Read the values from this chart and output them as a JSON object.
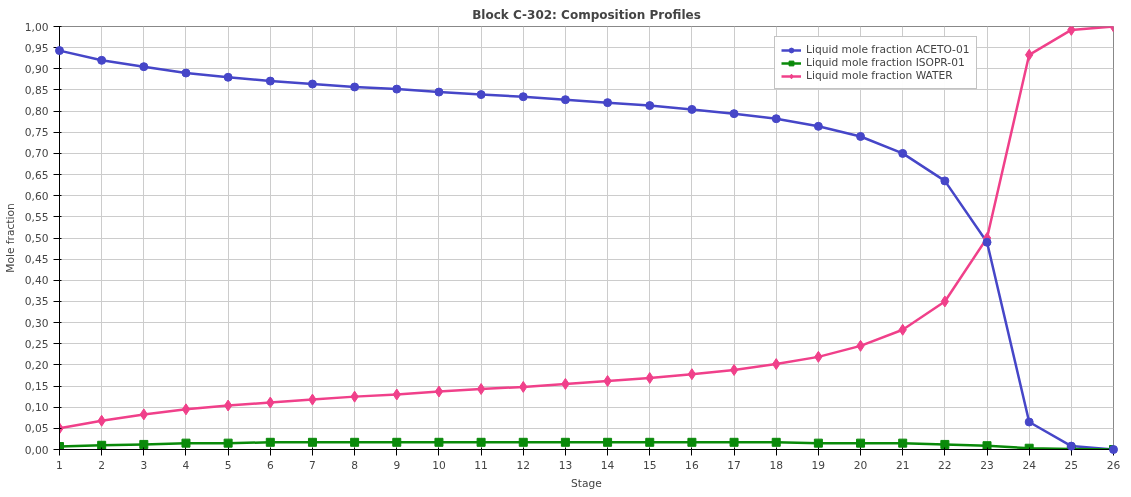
{
  "chart_data": {
    "type": "line",
    "title": "Block C-302: Composition Profiles",
    "xlabel": "Stage",
    "ylabel": "Mole fraction",
    "x": [
      1,
      2,
      3,
      4,
      5,
      6,
      7,
      8,
      9,
      10,
      11,
      12,
      13,
      14,
      15,
      16,
      17,
      18,
      19,
      20,
      21,
      22,
      23,
      24,
      25,
      26
    ],
    "series": [
      {
        "name": "Liquid mole fraction ACETO-01",
        "color": "#4646c8",
        "marker": "circle",
        "values": [
          0.943,
          0.92,
          0.905,
          0.89,
          0.88,
          0.871,
          0.864,
          0.857,
          0.852,
          0.845,
          0.839,
          0.834,
          0.827,
          0.82,
          0.813,
          0.804,
          0.794,
          0.782,
          0.764,
          0.74,
          0.7,
          0.635,
          0.49,
          0.065,
          0.008,
          0.0
        ]
      },
      {
        "name": "Liquid mole fraction ISOPR-01",
        "color": "#0a8a0a",
        "marker": "square",
        "values": [
          0.007,
          0.01,
          0.012,
          0.015,
          0.015,
          0.017,
          0.017,
          0.017,
          0.017,
          0.017,
          0.017,
          0.017,
          0.017,
          0.017,
          0.017,
          0.017,
          0.017,
          0.017,
          0.015,
          0.015,
          0.015,
          0.012,
          0.009,
          0.003,
          0.001,
          0.0
        ]
      },
      {
        "name": "Liquid mole fraction WATER",
        "color": "#f0408a",
        "marker": "diamond",
        "values": [
          0.05,
          0.068,
          0.083,
          0.095,
          0.104,
          0.111,
          0.118,
          0.125,
          0.13,
          0.137,
          0.143,
          0.148,
          0.155,
          0.162,
          0.169,
          0.178,
          0.188,
          0.202,
          0.219,
          0.245,
          0.283,
          0.35,
          0.5,
          0.933,
          0.992,
          1.0
        ]
      }
    ],
    "xlim": [
      1,
      26
    ],
    "xticks": [
      1,
      2,
      3,
      4,
      5,
      6,
      7,
      8,
      9,
      10,
      11,
      12,
      13,
      14,
      15,
      16,
      17,
      18,
      19,
      20,
      21,
      22,
      23,
      24,
      25,
      26
    ],
    "ylim": [
      0,
      1
    ],
    "yticks": [
      {
        "value": 0,
        "label": "0,00"
      },
      {
        "value": 0.05,
        "label": "0,05"
      },
      {
        "value": 0.1,
        "label": "0,10"
      },
      {
        "value": 0.15,
        "label": "0,15"
      },
      {
        "value": 0.2,
        "label": "0,20"
      },
      {
        "value": 0.25,
        "label": "0,25"
      },
      {
        "value": 0.3,
        "label": "0,30"
      },
      {
        "value": 0.35,
        "label": "0,35"
      },
      {
        "value": 0.4,
        "label": "0,40"
      },
      {
        "value": 0.45,
        "label": "0,45"
      },
      {
        "value": 0.5,
        "label": "0,50"
      },
      {
        "value": 0.55,
        "label": "0,55"
      },
      {
        "value": 0.6,
        "label": "0,60"
      },
      {
        "value": 0.65,
        "label": "0,65"
      },
      {
        "value": 0.7,
        "label": "0,70"
      },
      {
        "value": 0.75,
        "label": "0,75"
      },
      {
        "value": 0.8,
        "label": "0,80"
      },
      {
        "value": 0.85,
        "label": "0,85"
      },
      {
        "value": 0.9,
        "label": "0,90"
      },
      {
        "value": 0.95,
        "label": "0,95"
      },
      {
        "value": 1,
        "label": "1,00"
      }
    ],
    "grid": true,
    "legend": "top right",
    "line_style": "solid"
  }
}
